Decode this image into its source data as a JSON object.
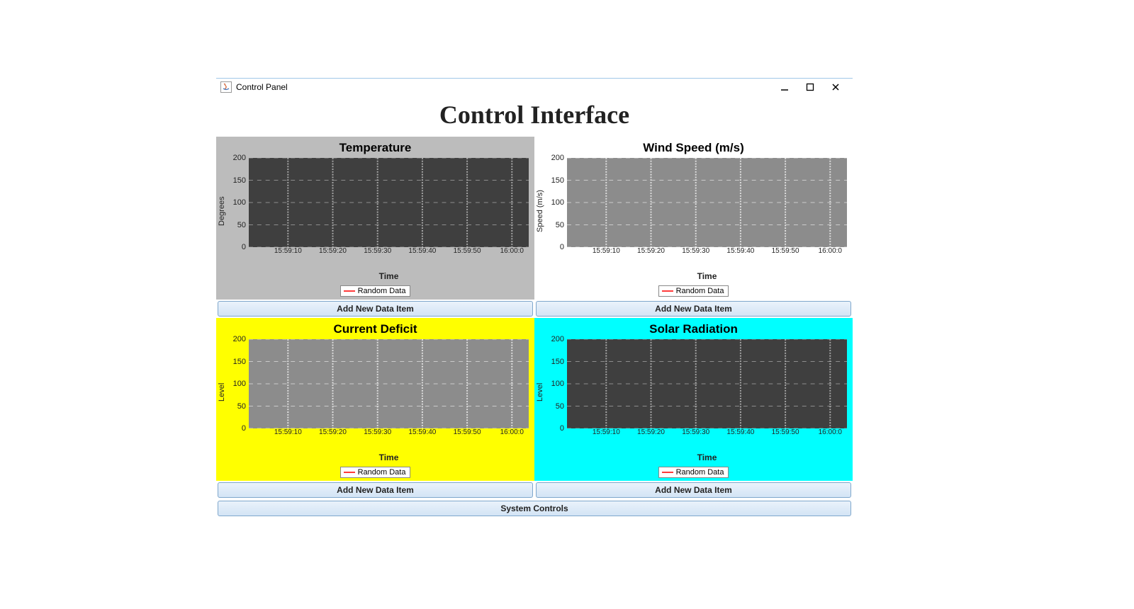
{
  "window": {
    "title": "Control Panel",
    "main_heading": "Control Interface"
  },
  "buttons": {
    "add_new_data_item": "Add New Data Item",
    "system_controls": "System Controls"
  },
  "legend": {
    "label": "Random Data",
    "line_color": "#ff3b3b"
  },
  "charts": [
    {
      "id": "temperature",
      "title": "Temperature",
      "panel_bg": "#bcbcbc",
      "title_color": "#000000",
      "plot_bg": "#3f3f3f",
      "grid_color": "#a8a8a8",
      "axis_text_color": "#222222",
      "y_label": "Degrees",
      "x_label": "Time",
      "y_ticks": [
        0,
        50,
        100,
        150,
        200
      ],
      "ylim": [
        0,
        200
      ],
      "x_ticks": [
        "15:59:10",
        "15:59:20",
        "15:59:30",
        "15:59:40",
        "15:59:50",
        "16:00:0"
      ],
      "x_positions_pct": [
        14,
        30,
        46,
        62,
        78,
        94
      ]
    },
    {
      "id": "wind-speed",
      "title": "Wind Speed (m/s)",
      "panel_bg": "#ffffff",
      "title_color": "#000000",
      "plot_bg": "#8c8c8c",
      "grid_color": "#e0e0e0",
      "axis_text_color": "#222222",
      "y_label": "Speed (m/s)",
      "x_label": "Time",
      "y_ticks": [
        0,
        50,
        100,
        150,
        200
      ],
      "ylim": [
        0,
        200
      ],
      "x_ticks": [
        "15:59:10",
        "15:59:20",
        "15:59:30",
        "15:59:40",
        "15:59:50",
        "16:00:0"
      ],
      "x_positions_pct": [
        14,
        30,
        46,
        62,
        78,
        94
      ]
    },
    {
      "id": "current-deficit",
      "title": "Current Deficit",
      "panel_bg": "#ffff00",
      "title_color": "#000000",
      "plot_bg": "#8c8c8c",
      "grid_color": "#e0e0e0",
      "axis_text_color": "#222222",
      "y_label": "Level",
      "x_label": "Time",
      "y_ticks": [
        0,
        50,
        100,
        150,
        200
      ],
      "ylim": [
        0,
        200
      ],
      "x_ticks": [
        "15:59:10",
        "15:59:20",
        "15:59:30",
        "15:59:40",
        "15:59:50",
        "16:00:0"
      ],
      "x_positions_pct": [
        14,
        30,
        46,
        62,
        78,
        94
      ]
    },
    {
      "id": "solar-radiation",
      "title": "Solar Radiation",
      "panel_bg": "#00ffff",
      "title_color": "#000000",
      "plot_bg": "#3f3f3f",
      "grid_color": "#a8a8a8",
      "axis_text_color": "#222222",
      "y_label": "Level",
      "x_label": "Time",
      "y_ticks": [
        0,
        50,
        100,
        150,
        200
      ],
      "ylim": [
        0,
        200
      ],
      "x_ticks": [
        "15:59:10",
        "15:59:20",
        "15:59:30",
        "15:59:40",
        "15:59:50",
        "16:00:0"
      ],
      "x_positions_pct": [
        14,
        30,
        46,
        62,
        78,
        94
      ]
    }
  ]
}
